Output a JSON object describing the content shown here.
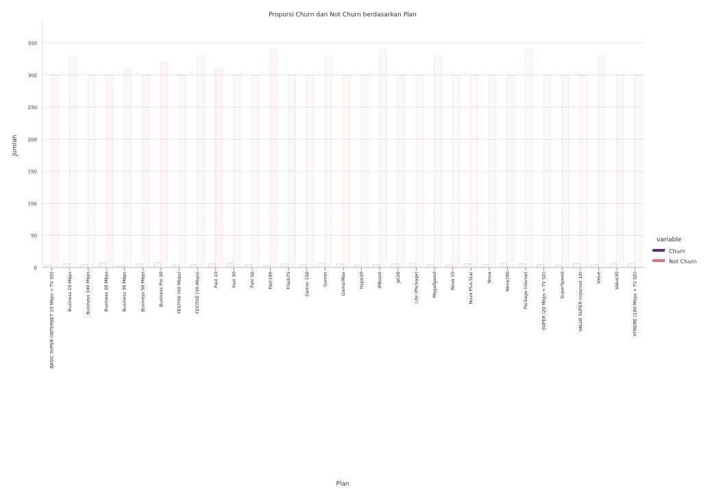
{
  "chart_data": {
    "type": "bar",
    "title": "Proporsi Churn dan Not Churn berdasarkan Plan",
    "xlabel": "Plan",
    "ylabel": "Jumlah",
    "ylim": [
      0,
      385
    ],
    "yticks": [
      0,
      50,
      100,
      150,
      200,
      250,
      300,
      350
    ],
    "grid": true,
    "legend": {
      "title": "variable",
      "placement": "right",
      "entries": [
        {
          "name": "Churn",
          "color": "#5b2a86"
        },
        {
          "name": "Not Churn",
          "color": "#e07070"
        }
      ]
    },
    "categories": [
      "BASIC SUPER (INTERNET 10 Mbps + TV SD)",
      "Business 10 Mbps",
      "Business 100 Mbps",
      "Business 20 Mbps",
      "Business 30 Mbps",
      "Business 50 Mbps",
      "Business Pro 50",
      "FESTIVE (50 Mbps)",
      "FESTIVE (30 Mbps)",
      "Fast 10",
      "Fast 30",
      "Fast 50",
      "Fast100",
      "Flash75",
      "Gamer 150",
      "Gamer",
      "GamerMax",
      "Hype20",
      "IRBoost",
      "Jet20",
      "Lite (Package)",
      "MegaSpeed",
      "Nova 10",
      "Nova Plus Star",
      "Nova",
      "Nova100",
      "Package Internet",
      "SUPER (20 Mbps + TV SD)",
      "SuperSpeed",
      "VALUE SUPER (Internet 10)",
      "Value",
      "Value30",
      "XTREME (100 Mbps + TV SD)"
    ],
    "series": [
      {
        "name": "Churn",
        "values": [
          4,
          6,
          5,
          7,
          3,
          6,
          8,
          4,
          5,
          6,
          7,
          5,
          4,
          6,
          5,
          7,
          6,
          4,
          5,
          6,
          7,
          5,
          4,
          6,
          5,
          7,
          6,
          5,
          4,
          6,
          5,
          7,
          6
        ]
      },
      {
        "name": "Not Churn",
        "values": [
          300,
          330,
          300,
          300,
          310,
          300,
          320,
          300,
          330,
          310,
          300,
          300,
          340,
          300,
          300,
          330,
          300,
          300,
          340,
          300,
          300,
          330,
          300,
          300,
          300,
          300,
          340,
          300,
          300,
          300,
          330,
          300,
          300
        ]
      }
    ]
  }
}
